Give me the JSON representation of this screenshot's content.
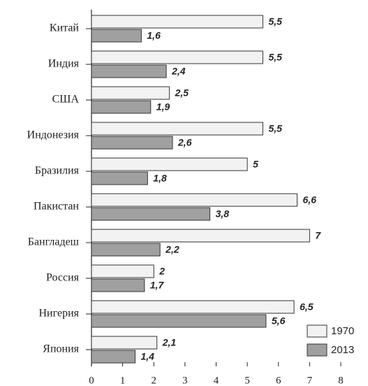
{
  "chart_data": {
    "type": "bar",
    "orientation": "horizontal",
    "categories": [
      "Китай",
      "Индия",
      "США",
      "Индонезия",
      "Бразилия",
      "Пакистан",
      "Бангладеш",
      "Россия",
      "Нигерия",
      "Япония"
    ],
    "series": [
      {
        "name": "1970",
        "color": "#f2f2f2",
        "values": [
          5.5,
          5.5,
          2.5,
          5.5,
          5,
          6.6,
          7,
          2,
          6.5,
          2.1
        ],
        "value_labels": [
          "5,5",
          "5,5",
          "2,5",
          "5,5",
          "5",
          "6,6",
          "7",
          "2",
          "6,5",
          "2,1"
        ]
      },
      {
        "name": "2013",
        "color": "#a0a0a0",
        "values": [
          1.6,
          2.4,
          1.9,
          2.6,
          1.8,
          3.8,
          2.2,
          1.7,
          5.6,
          1.4
        ],
        "value_labels": [
          "1,6",
          "2,4",
          "1,9",
          "2,6",
          "1,8",
          "3,8",
          "2,2",
          "1,7",
          "5,6",
          "1,4"
        ]
      }
    ],
    "xlim": [
      0,
      8
    ],
    "xticks": [
      0,
      1,
      2,
      3,
      4,
      5,
      6,
      7,
      8
    ],
    "legend": "lower right"
  }
}
